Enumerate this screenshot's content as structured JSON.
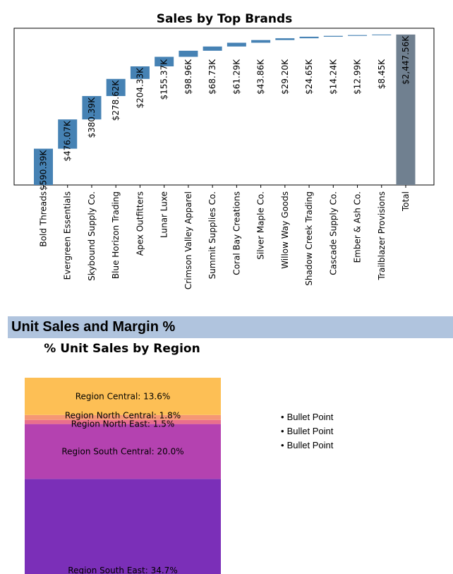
{
  "chart_data": [
    {
      "type": "bar",
      "subtype": "waterfall",
      "title": "Sales by Top Brands",
      "categories": [
        "Bold Threads",
        "Evergreen Essentials",
        "Skybound Supply Co.",
        "Blue Horizon Trading",
        "Apex Outfitters",
        "Lunar Luxe",
        "Crimson Valley Apparel",
        "Summit Supplies Co.",
        "Coral Bay Creations",
        "Silver Maple Co.",
        "Willow Way Goods",
        "Shadow Creek Trading",
        "Cascade Supply Co.",
        "Ember & Ash Co.",
        "Trailblazer Provisions",
        "Total"
      ],
      "values": [
        590.39,
        476.07,
        380.39,
        278.62,
        204.33,
        155.37,
        98.96,
        68.73,
        61.29,
        43.86,
        29.2,
        24.65,
        14.24,
        12.99,
        8.45,
        2447.56
      ],
      "value_unit": "$K",
      "labels": [
        "$590.39K",
        "$476.07K",
        "$380.39K",
        "$278.62K",
        "$204.33K",
        "$155.37K",
        "$98.96K",
        "$68.73K",
        "$61.29K",
        "$43.86K",
        "$29.20K",
        "$24.65K",
        "$14.24K",
        "$12.99K",
        "$8.45K",
        "$2,447.56K"
      ],
      "ylim": [
        0,
        2550
      ],
      "grid": false,
      "colors": {
        "bar": "#4682b4",
        "total": "#708090"
      }
    },
    {
      "type": "stacked-bar",
      "title": "% Unit Sales by Region",
      "categories": [
        "Region South East",
        "Region South Central",
        "Region North East",
        "Region North Central",
        "Region Central"
      ],
      "values": [
        34.7,
        20.0,
        1.5,
        1.8,
        13.6
      ],
      "labels": [
        "Region South East:  34.7%",
        "Region South Central:  20.0%",
        "Region North East:  1.5%",
        "Region North Central:  1.8%",
        "Region Central:  13.6%"
      ],
      "colors": [
        "#7b2fb8",
        "#b442b0",
        "#e86f8c",
        "#f59775",
        "#fdbf55"
      ]
    }
  ],
  "section": {
    "title": "Unit Sales and Margin %"
  },
  "bullets": [
    "Bullet Point",
    "Bullet Point",
    "Bullet Point"
  ]
}
